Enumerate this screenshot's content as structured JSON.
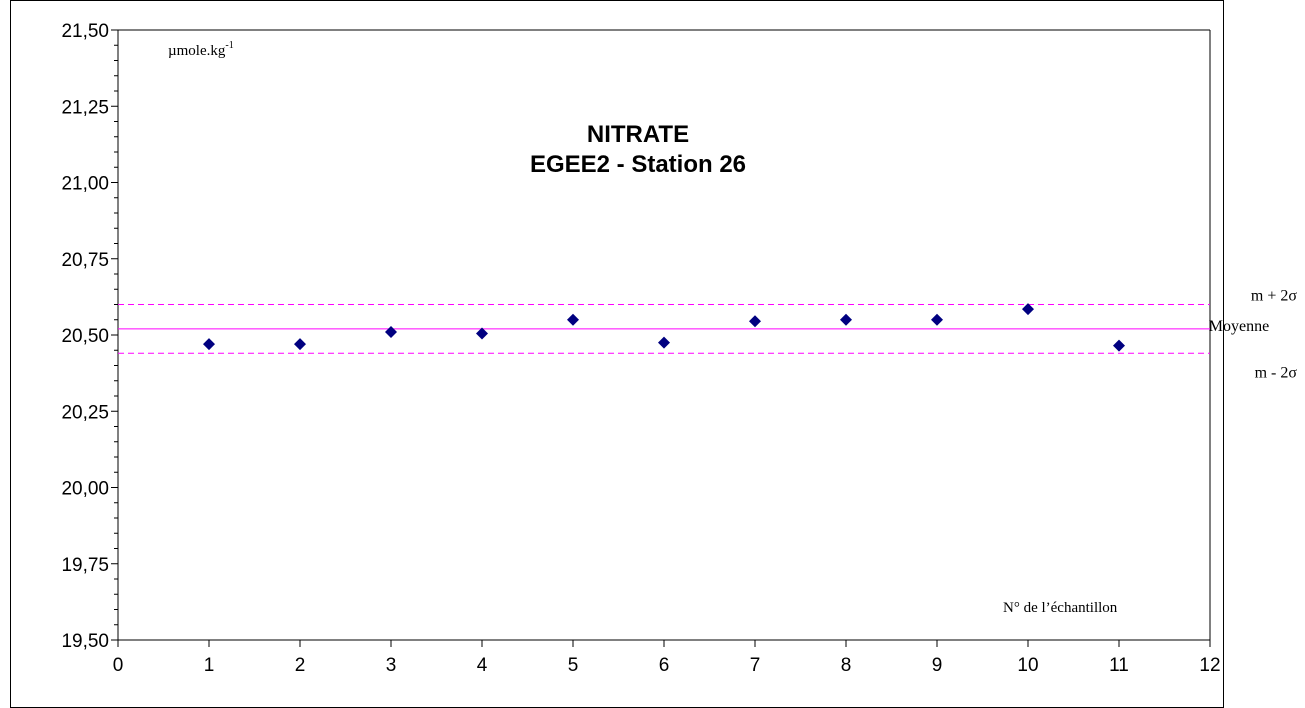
{
  "chart_data": {
    "type": "scatter",
    "title": "NITRATE",
    "subtitle": "EGEE2 - Station 26",
    "unit_label": "µmole.kg",
    "unit_exponent": "-1",
    "xlabel": "N° de l’échantillon",
    "xlim": [
      0,
      12
    ],
    "ylim": [
      19.5,
      21.5
    ],
    "x_ticks": [
      "0",
      "1",
      "2",
      "3",
      "4",
      "5",
      "6",
      "7",
      "8",
      "9",
      "10",
      "11",
      "12"
    ],
    "y_ticks": [
      "19,50",
      "19,75",
      "20,00",
      "20,25",
      "20,50",
      "20,75",
      "21,00",
      "21,25",
      "21,50"
    ],
    "grid": false,
    "series": [
      {
        "marker": "diamond",
        "color": "#000080",
        "x": [
          1,
          2,
          3,
          4,
          5,
          6,
          7,
          8,
          9,
          10,
          11
        ],
        "y": [
          20.47,
          20.47,
          20.51,
          20.505,
          20.55,
          20.475,
          20.545,
          20.55,
          20.55,
          20.585,
          20.465
        ]
      }
    ],
    "reference_lines": [
      {
        "label": "m + 2σ",
        "value": 20.6,
        "style": "dashed",
        "color": "#ff00ff"
      },
      {
        "label": "Moyenne",
        "value": 20.52,
        "style": "solid",
        "color": "#ff00ff"
      },
      {
        "label": "m - 2σ",
        "value": 20.44,
        "style": "dashed",
        "color": "#ff00ff"
      }
    ]
  }
}
